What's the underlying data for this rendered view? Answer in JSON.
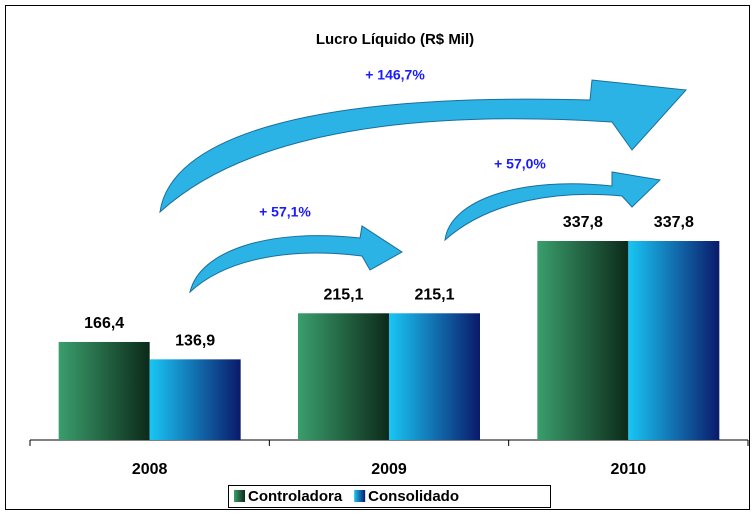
{
  "chart_data": {
    "type": "bar",
    "title": "Lucro Líquido (R$ Mil)",
    "categories": [
      "2008",
      "2009",
      "2010"
    ],
    "series": [
      {
        "name": "Controladora",
        "color": "#3a9e6c",
        "values": [
          166.4,
          215.1,
          337.8
        ],
        "value_labels": [
          "166,4",
          "215,1",
          "337,8"
        ]
      },
      {
        "name": "Consolidado",
        "color": "#19c6f5",
        "values": [
          136.9,
          215.1,
          337.8
        ],
        "value_labels": [
          "136,9",
          "215,1",
          "337,8"
        ]
      }
    ],
    "annotations": [
      "+ 146,7%",
      "+ 57,1%",
      "+ 57,0%"
    ],
    "legend": "bottom"
  }
}
